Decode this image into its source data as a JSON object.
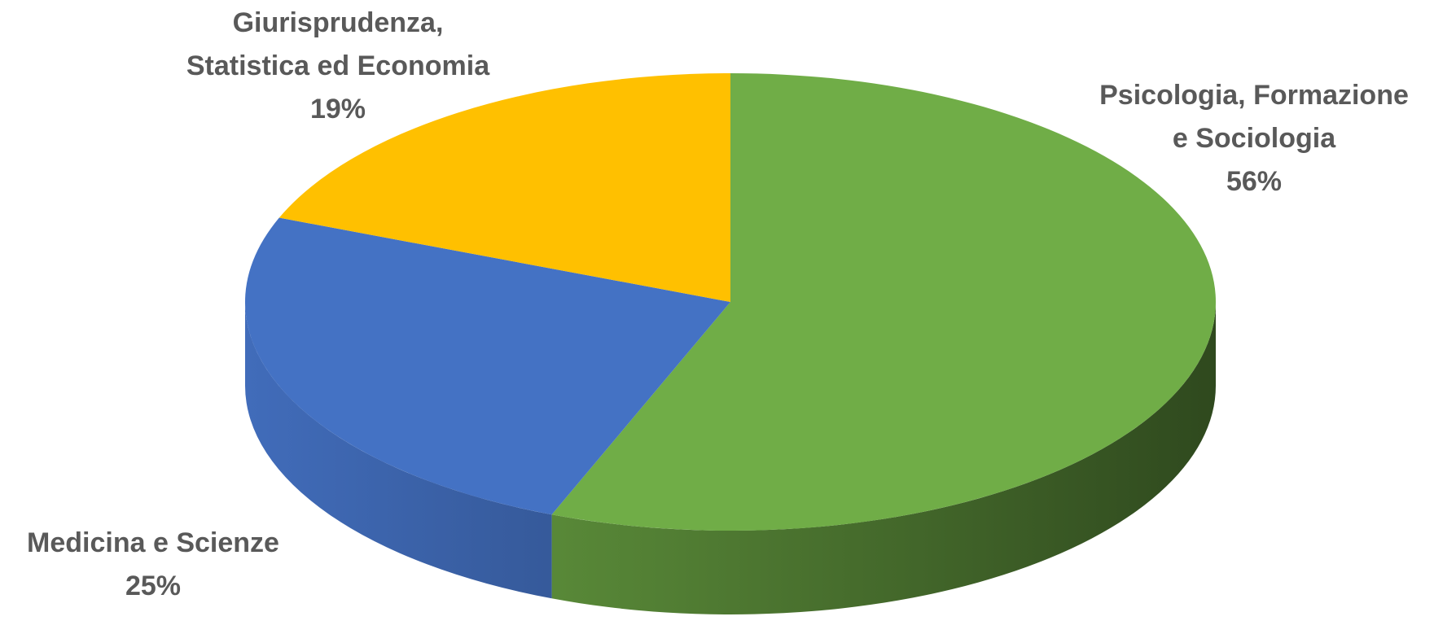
{
  "chart_data": {
    "type": "pie",
    "title": "",
    "style": "3d",
    "slices": [
      {
        "name": "Psicologia, Formazione e Sociologia",
        "label_lines": [
          "Psicologia, Formazione",
          "e Sociologia"
        ],
        "value": 56,
        "percent_label": "56%",
        "color": "#70AD47"
      },
      {
        "name": "Medicina e Scienze",
        "label_lines": [
          "Medicina e Scienze"
        ],
        "value": 25,
        "percent_label": "25%",
        "color": "#4472C4"
      },
      {
        "name": "Giurisprudenza, Statistica ed Economia",
        "label_lines": [
          "Giurisprudenza,",
          "Statistica ed Economia"
        ],
        "value": 19,
        "percent_label": "19%",
        "color": "#FFC000"
      }
    ],
    "legend": "none"
  }
}
